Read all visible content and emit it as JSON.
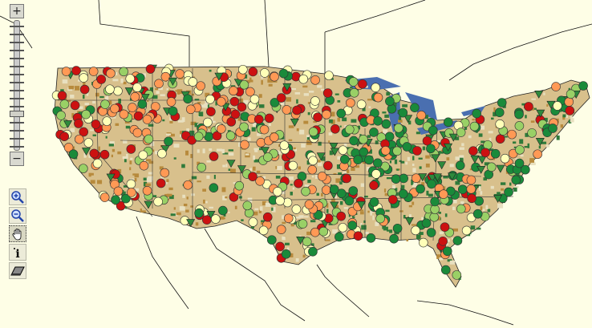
{
  "map": {
    "background_color": "#fefee6",
    "land_color": "#d8c08c",
    "forest_color": "#2f7a3a",
    "water_color": "#4a6fb0",
    "border_color": "#111111",
    "marker_colors": [
      "#cc1111",
      "#ff9955",
      "#ffffb8",
      "#99d066",
      "#1a8a3a"
    ],
    "triangle_marker_color": "#2e8a3c"
  },
  "zoom_control": {
    "zoom_in_icon": "plus-icon",
    "zoom_out_icon": "minus-icon",
    "level": 12,
    "levels": 16
  },
  "tools": [
    {
      "name": "zoom-in-tool",
      "icon": "magnifier-plus-icon",
      "active": false
    },
    {
      "name": "zoom-out-tool",
      "icon": "magnifier-minus-icon",
      "active": false
    },
    {
      "name": "pan-tool",
      "icon": "hand-icon",
      "active": true
    },
    {
      "name": "identify-tool",
      "icon": "info-icon",
      "active": false
    },
    {
      "name": "clear-tool",
      "icon": "eraser-icon",
      "active": false
    }
  ]
}
